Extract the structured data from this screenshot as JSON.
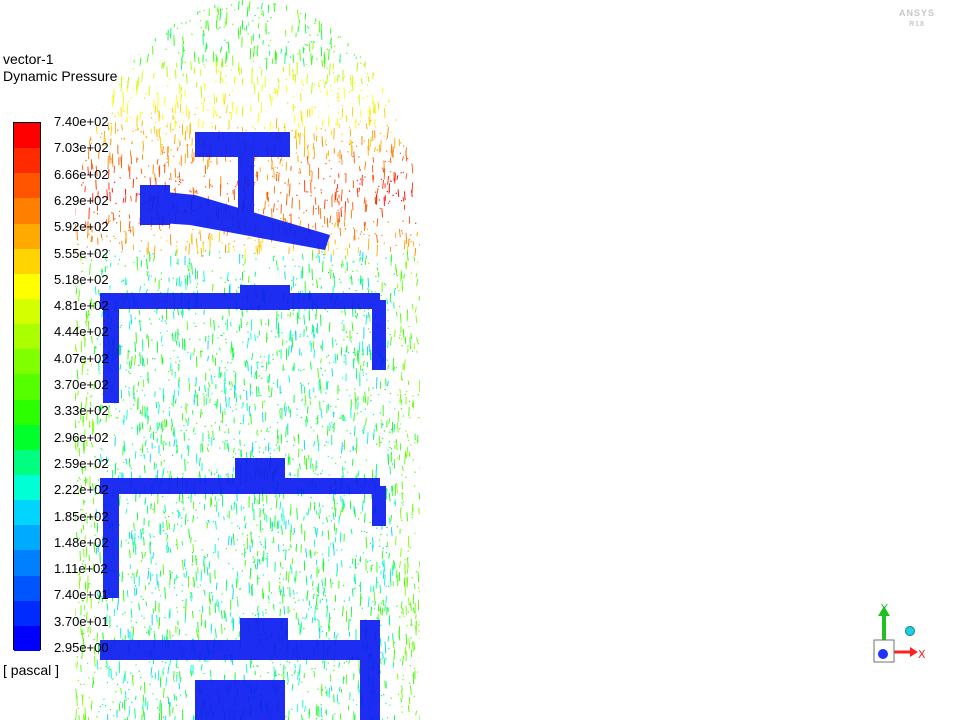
{
  "viewer": {
    "object_name": "vector-1",
    "variable": "Dynamic Pressure",
    "unit": "[ pascal ]",
    "logo_text": "ANSYS"
  },
  "legend": {
    "labels": [
      "7.40e+02",
      "7.03e+02",
      "6.66e+02",
      "6.29e+02",
      "5.92e+02",
      "5.55e+02",
      "5.18e+02",
      "4.81e+02",
      "4.44e+02",
      "4.07e+02",
      "3.70e+02",
      "3.33e+02",
      "2.96e+02",
      "2.59e+02",
      "2.22e+02",
      "1.85e+02",
      "1.48e+02",
      "1.11e+02",
      "7.40e+01",
      "3.70e+01",
      "2.95e+00"
    ],
    "colors": [
      "#ff0000",
      "#ff2b00",
      "#ff5500",
      "#ff8000",
      "#ffaa00",
      "#ffd400",
      "#ffff00",
      "#d4ff00",
      "#aaff00",
      "#80ff00",
      "#55ff00",
      "#2bff00",
      "#00ff2b",
      "#00ff80",
      "#00ffd4",
      "#00d4ff",
      "#00aaff",
      "#0080ff",
      "#0055ff",
      "#002bff",
      "#0000ff"
    ]
  },
  "triad": {
    "x_label": "X",
    "y_label": "Y",
    "x_color": "#ff2020",
    "y_color": "#20c020",
    "z_color": "#2030ff"
  },
  "colors": {
    "solid_parts": "#0a1cf0",
    "background": "#ffffff"
  }
}
